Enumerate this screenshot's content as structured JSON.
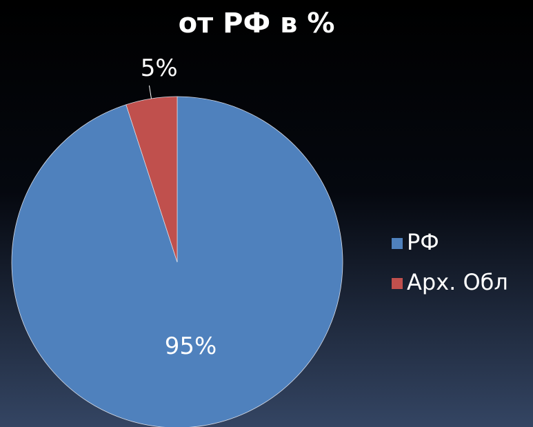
{
  "chart_data": {
    "type": "pie",
    "title": "от РФ в %",
    "categories": [
      "РФ",
      "Арх. Обл"
    ],
    "values": [
      95,
      5
    ],
    "value_labels": [
      "95%",
      "5%"
    ],
    "colors": [
      "#4f81bd",
      "#c0504d"
    ],
    "legend": "right"
  }
}
